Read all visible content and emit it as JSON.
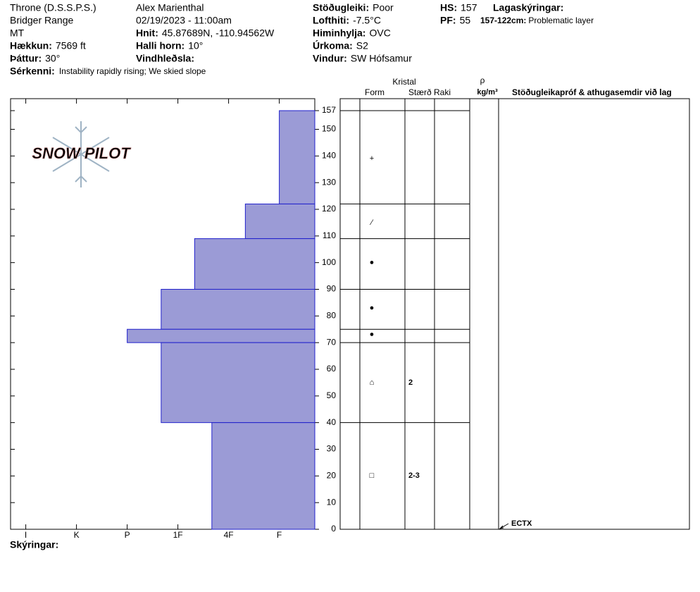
{
  "header": {
    "columns": [
      [
        {
          "value": "Throne (D.S.S.P.S.)"
        },
        {
          "value": "Bridger Range"
        },
        {
          "value": "MT"
        },
        {
          "label": "Hækkun:",
          "value": "7569 ft"
        },
        {
          "label": "Þáttur:",
          "value": "30°"
        }
      ],
      [
        {
          "value": "Alex Marienthal"
        },
        {
          "value": "02/19/2023 - 11:00am"
        },
        {
          "label": "Hnit:",
          "value": "45.87689N, -110.94562W"
        },
        {
          "label": "Halli horn:",
          "value": "10°"
        },
        {
          "label": "Vindhleðsla:"
        }
      ],
      [
        {
          "label": "Stöðugleiki:",
          "value": "Poor"
        },
        {
          "label": "Lofthiti:",
          "value": "-7.5°C"
        },
        {
          "label": "Himinhylja:",
          "value": "OVC"
        },
        {
          "label": "Úrkoma:",
          "value": "S2"
        },
        {
          "label": "Vindur:",
          "value": "SW Hófsamur"
        }
      ],
      [
        {
          "label": "HS:",
          "value": "157"
        },
        {
          "label": "PF:",
          "value": "55"
        }
      ]
    ],
    "remarks": {
      "label": "Sérkenni:",
      "value": "Instability rapidly rising; We skied slope"
    },
    "layer_notes": {
      "title": "Lagaskýringar:",
      "items": [
        {
          "label": "157-122cm:",
          "value": "Problematic layer"
        }
      ]
    },
    "logo": "SNOW PILOT"
  },
  "table_header": {
    "crystal": "Kristal",
    "form": "Form",
    "size": "Stærð",
    "moisture": "Raki",
    "density_symbol": "ρ",
    "density_unit": "kg/m³",
    "comments": "Stöðugleikapróf & athugasemdir við lag"
  },
  "legend_label": "Skýringar:",
  "chart_data": {
    "type": "snow-profile",
    "layer_tops": [
      157,
      122,
      109,
      90,
      75,
      70,
      40
    ],
    "layer_bottoms": [
      122,
      109,
      90,
      75,
      70,
      40,
      0
    ],
    "hardness": [
      1,
      1.67,
      2.67,
      3.33,
      4,
      3.33,
      2.33
    ],
    "color": "#9b9bd6",
    "edge_color": "#2222cc",
    "xlim": [
      6.3,
      0.3
    ],
    "xticks": [
      {
        "value": 6,
        "label": "I"
      },
      {
        "value": 5,
        "label": "K"
      },
      {
        "value": 4,
        "label": "P"
      },
      {
        "value": 3,
        "label": "1F"
      },
      {
        "value": 2,
        "label": "4F"
      },
      {
        "value": 1,
        "label": "F"
      }
    ],
    "ylim": [
      0,
      157
    ],
    "yticks": [
      0,
      10,
      20,
      30,
      40,
      50,
      60,
      70,
      80,
      90,
      100,
      110,
      120,
      130,
      140,
      150,
      157
    ],
    "grains": [
      {
        "height": 139,
        "form": "+"
      },
      {
        "height": 115,
        "form": "⁄"
      },
      {
        "height": 100,
        "form": "●"
      },
      {
        "height": 83,
        "form": "●"
      },
      {
        "height": 73,
        "form": "●"
      },
      {
        "height": 55,
        "form": "⌂",
        "size": "2"
      },
      {
        "height": 20,
        "form": "□",
        "size": "2-3"
      }
    ],
    "tests": [
      {
        "height": 0,
        "label": "ECTX"
      }
    ]
  }
}
